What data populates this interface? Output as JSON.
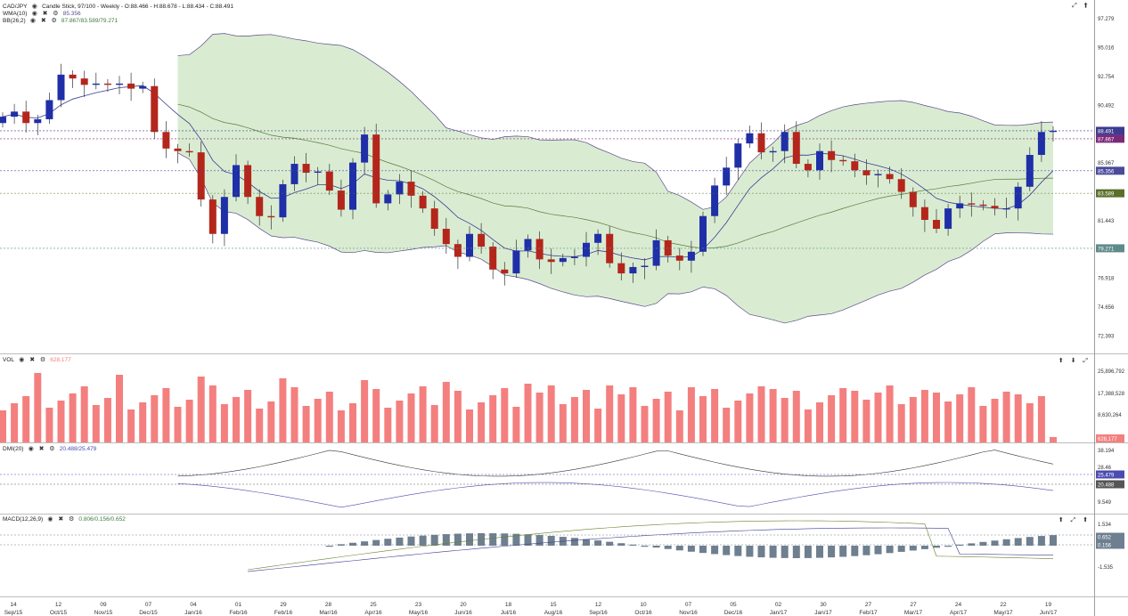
{
  "main_legend": {
    "symbol": "CAD/JPY",
    "style": "Candle Stick, 97/100 - Weekly - O:88.466 - H:88.678 - L:88.434 - C:88.491",
    "wma_label": "WMA(10)",
    "wma_value": "85.356",
    "bb_label": "BB(26,2)",
    "bb_value": "87.867/83.589/79.271"
  },
  "vol_legend": {
    "label": "VOL",
    "value": "628,177"
  },
  "dmi_legend": {
    "label": "DMI(20)",
    "value": "20.488/25.479"
  },
  "macd_legend": {
    "label": "MACD(12,26,9)",
    "value": "0.806/0.156/0.652"
  },
  "colors": {
    "up": "#1f2fa8",
    "down": "#b4261b",
    "band_fill": "#d9ecd2",
    "band_line": "#5b4a8a",
    "vol": "#f47f7f",
    "macd_hist": "#6e7f8f"
  },
  "main_ticks": [
    "97.279",
    "95.016",
    "92.754",
    "90.492",
    "85.967",
    "81.443",
    "76.918",
    "74.656",
    "72.393"
  ],
  "main_badges": [
    {
      "text": "88.491",
      "color": "#3b3b8f"
    },
    {
      "text": "87.867",
      "color": "#7a2a7a"
    },
    {
      "text": "85.356",
      "color": "#4b4b9a"
    },
    {
      "text": "83.589",
      "color": "#5a6f2a"
    },
    {
      "text": "79.271",
      "color": "#5f8a8a"
    }
  ],
  "vol_ticks": [
    "25,896,792",
    "17,388,528",
    "8,630,264"
  ],
  "vol_badge": {
    "text": "628,177",
    "color": "#f47f7f"
  },
  "dmi_ticks": [
    "38.194",
    "28.46",
    "9.549"
  ],
  "dmi_badges": [
    {
      "text": "25.479",
      "color": "#4b4bb0"
    },
    {
      "text": "20.488",
      "color": "#555555"
    }
  ],
  "macd_ticks": [
    "1.534",
    "-1.535"
  ],
  "macd_badges": [
    {
      "text": "0.652",
      "color": "#6e7f8f"
    },
    {
      "text": "0.156",
      "color": "#6e7f8f"
    }
  ],
  "x_axis": [
    {
      "d": "14",
      "m": "Sep/15"
    },
    {
      "d": "12",
      "m": "Oct/15"
    },
    {
      "d": "09",
      "m": "Nov/15"
    },
    {
      "d": "07",
      "m": "Dec/15"
    },
    {
      "d": "04",
      "m": "Jan/16"
    },
    {
      "d": "01",
      "m": "Feb/16"
    },
    {
      "d": "29",
      "m": "Feb/16"
    },
    {
      "d": "28",
      "m": "Mar/16"
    },
    {
      "d": "25",
      "m": "Apr/16"
    },
    {
      "d": "23",
      "m": "May/16"
    },
    {
      "d": "20",
      "m": "Jun/16"
    },
    {
      "d": "18",
      "m": "Jul/16"
    },
    {
      "d": "15",
      "m": "Aug/16"
    },
    {
      "d": "12",
      "m": "Sep/16"
    },
    {
      "d": "10",
      "m": "Oct/16"
    },
    {
      "d": "07",
      "m": "Nov/16"
    },
    {
      "d": "05",
      "m": "Dec/16"
    },
    {
      "d": "02",
      "m": "Jan/17"
    },
    {
      "d": "30",
      "m": "Jan/17"
    },
    {
      "d": "27",
      "m": "Feb/17"
    },
    {
      "d": "27",
      "m": "Mar/17"
    },
    {
      "d": "24",
      "m": "Apr/17"
    },
    {
      "d": "22",
      "m": "May/17"
    },
    {
      "d": "19",
      "m": "Jun/17"
    }
  ],
  "chart_data": {
    "type": "candlestick",
    "title": "CAD/JPY",
    "ylim": [
      71.3,
      98.2
    ],
    "candles_close": [
      89.6,
      90.0,
      89.1,
      89.4,
      90.9,
      92.9,
      92.6,
      92.1,
      92.2,
      92.1,
      92.2,
      91.8,
      92.0,
      88.4,
      87.1,
      86.9,
      86.8,
      83.1,
      80.4,
      83.3,
      85.8,
      83.3,
      81.8,
      81.7,
      84.3,
      85.9,
      85.2,
      85.3,
      83.8,
      82.3,
      86.0,
      88.2,
      82.8,
      83.5,
      84.5,
      83.4,
      82.4,
      80.8,
      79.6,
      78.6,
      80.4,
      79.4,
      77.6,
      77.3,
      79.1,
      80.0,
      78.4,
      78.2,
      78.5,
      78.6,
      79.7,
      80.4,
      78.1,
      77.3,
      77.8,
      77.9,
      79.9,
      78.7,
      78.3,
      79.0,
      81.8,
      84.2,
      85.6,
      87.5,
      88.3,
      86.8,
      86.9,
      88.4,
      85.9,
      85.4,
      86.9,
      86.2,
      86.1,
      85.4,
      85.0,
      85.1,
      84.7,
      83.7,
      82.5,
      81.5,
      80.8,
      82.4,
      82.8,
      82.7,
      82.6,
      82.4,
      82.4,
      84.1,
      86.6,
      88.4,
      88.5
    ]
  }
}
